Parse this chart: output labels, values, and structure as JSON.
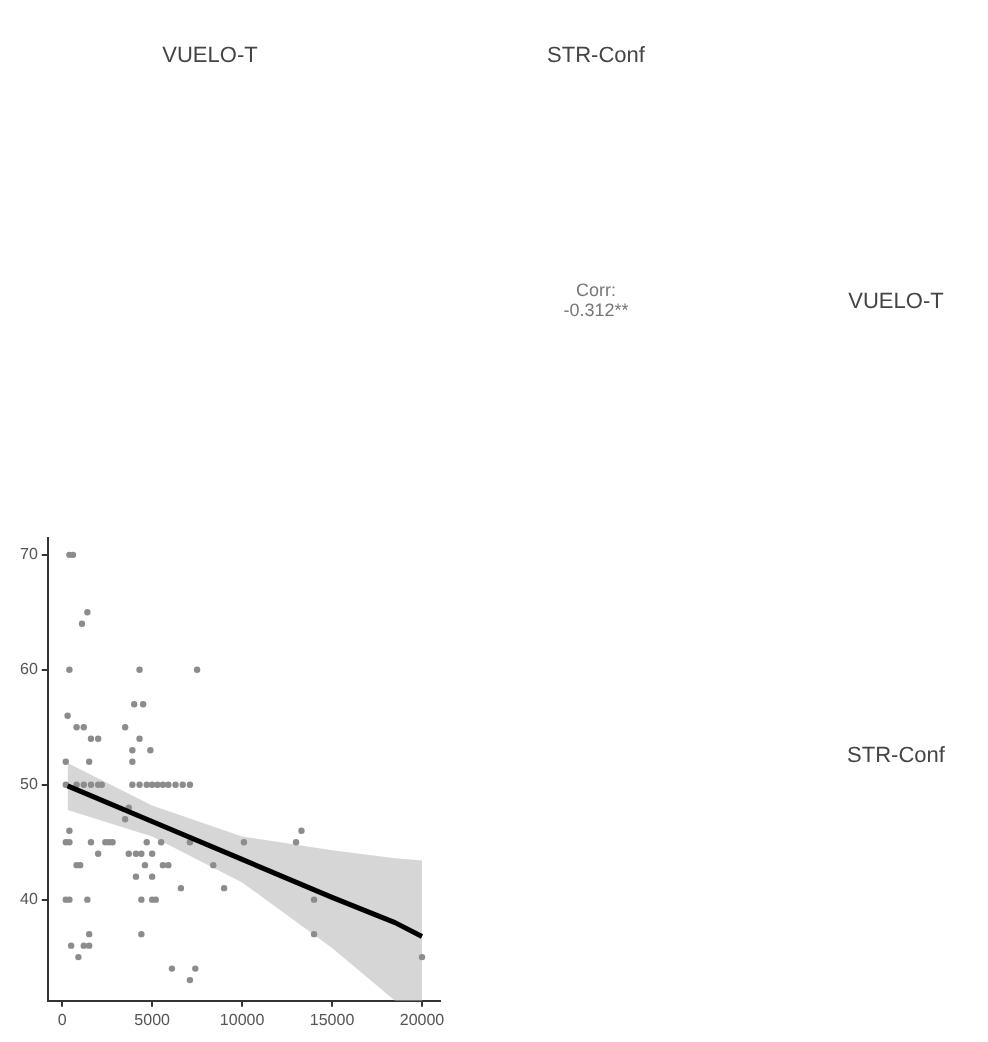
{
  "chart_data": {
    "type": "scatter",
    "xlim": [
      -800,
      21000
    ],
    "ylim": [
      31.2,
      71.5
    ],
    "xticks": [
      0,
      5000,
      10000,
      15000,
      20000
    ],
    "yticks": [
      40,
      50,
      60,
      70
    ],
    "grid": false,
    "legend": false,
    "annotations": [
      "VUELO-T",
      "STR-Conf",
      "Corr:\n-0.312**",
      "VUELO-T",
      "STR-Conf"
    ],
    "series": [
      {
        "color": "#8c8c8c",
        "marker": "circle",
        "x": [
          400,
          600,
          1100,
          1400,
          400,
          300,
          200,
          800,
          1200,
          1600,
          2000,
          1500,
          200,
          800,
          1200,
          1600,
          2000,
          2200,
          400,
          400,
          200,
          800,
          1000,
          200,
          400,
          500,
          1200,
          1500,
          900,
          1500,
          1400,
          1600,
          2000,
          2400,
          2600,
          2800,
          4300,
          7500,
          4000,
          4500,
          3500,
          4300,
          3900,
          4900,
          3900,
          3900,
          4300,
          4700,
          5000,
          5300,
          5600,
          5900,
          6300,
          6700,
          7100,
          3500,
          3700,
          4700,
          5500,
          7100,
          3700,
          4100,
          4400,
          5000,
          4600,
          5600,
          5900,
          4100,
          5000,
          4400,
          5000,
          5200,
          4400,
          6100,
          7400,
          7100,
          6600,
          8400,
          9000,
          10100,
          13000,
          13300,
          14000,
          14000,
          20000
        ],
        "values": [
          70,
          70,
          64,
          65,
          60,
          56,
          52,
          55,
          55,
          54,
          54,
          52,
          50,
          50,
          50,
          50,
          50,
          50,
          46,
          45,
          45,
          43,
          43,
          40,
          40,
          36,
          36,
          36,
          35,
          37,
          40,
          45,
          44,
          45,
          45,
          45,
          60,
          60,
          57,
          57,
          55,
          54,
          53,
          53,
          52,
          50,
          50,
          50,
          50,
          50,
          50,
          50,
          50,
          50,
          50,
          47,
          48,
          45,
          45,
          45,
          44,
          44,
          44,
          44,
          43,
          43,
          43,
          42,
          42,
          40,
          40,
          40,
          37,
          34,
          34,
          33,
          41,
          43,
          41,
          45,
          45,
          46,
          40,
          37,
          35
        ]
      },
      {
        "type": "line",
        "marker": "none",
        "color": "#000000",
        "x": [
          300,
          5000,
          10000,
          15000,
          18500,
          20000
        ],
        "values": [
          49.9,
          46.8,
          43.5,
          40.2,
          38,
          36.8
        ],
        "lower": [
          47.8,
          45.5,
          41.5,
          35.8,
          31.2,
          31.2
        ],
        "upper": [
          51.9,
          48.2,
          45.5,
          44.3,
          43.6,
          43.4
        ]
      }
    ]
  }
}
